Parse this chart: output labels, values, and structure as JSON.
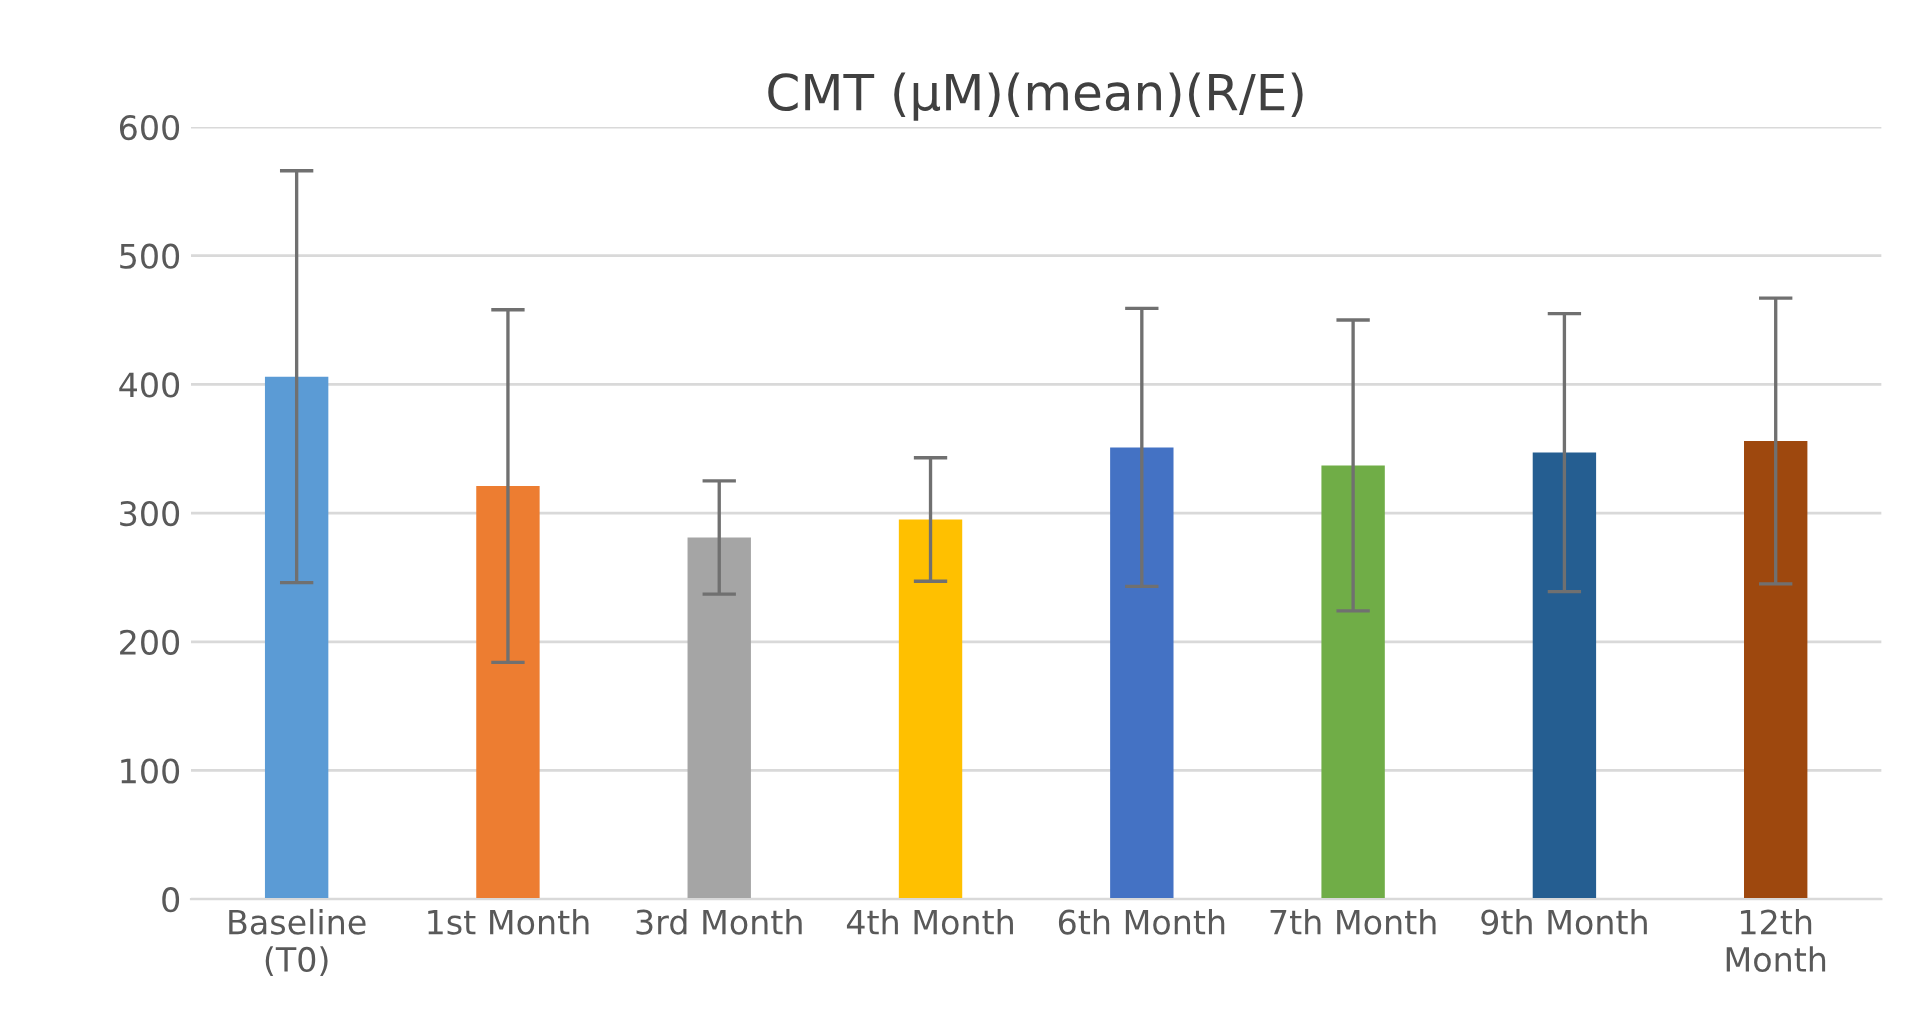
{
  "chart_data": {
    "type": "bar",
    "title": "CMT (µM)(mean)(R/E)",
    "categories": [
      "Baseline\n(T0)",
      "1st Month",
      "3rd Month",
      "4th Month",
      "6th Month",
      "7th Month",
      "9th Month",
      "12th\nMonth"
    ],
    "values": [
      406,
      321,
      281,
      295,
      351,
      337,
      347,
      356
    ],
    "errors": [
      160,
      137,
      44,
      48,
      108,
      113,
      108,
      111
    ],
    "colors": [
      "#5b9bd5",
      "#ed7d31",
      "#a5a5a5",
      "#ffc000",
      "#4472c4",
      "#70ad47",
      "#255e91",
      "#9e480e"
    ],
    "ylim": [
      0,
      600
    ],
    "yticks": [
      0,
      100,
      200,
      300,
      400,
      500,
      600
    ],
    "grid": "y"
  }
}
